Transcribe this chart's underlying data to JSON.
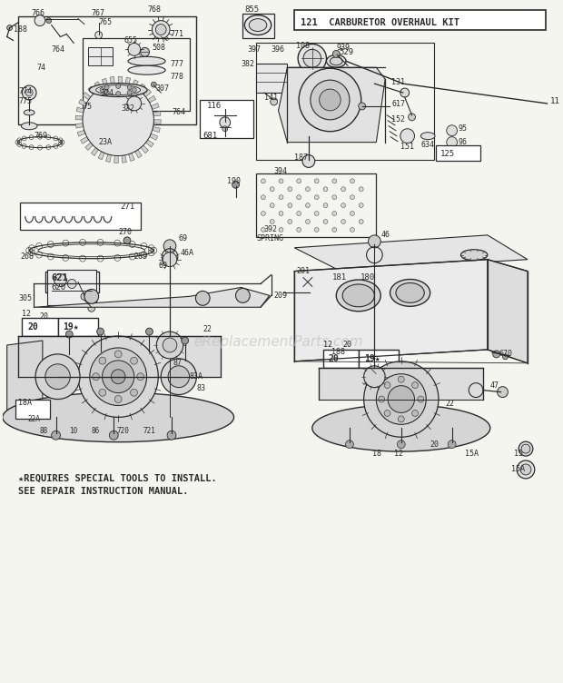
{
  "bg_color": "#f5f5f0",
  "fg_color": "#1a1a1a",
  "line_color": "#2a2a2a",
  "watermark": "eReplacementParts.com",
  "watermark_color": "#bbbbbb",
  "title_box_text": "121  CARBURETOR OVERHAUL KIT",
  "bottom_text1": "★REQUIRES SPECIAL TOOLS TO INSTALL.",
  "bottom_text2": "SEE REPAIR INSTRUCTION MANUAL.",
  "fig_w": 6.2,
  "fig_h": 7.52,
  "dpi": 100
}
